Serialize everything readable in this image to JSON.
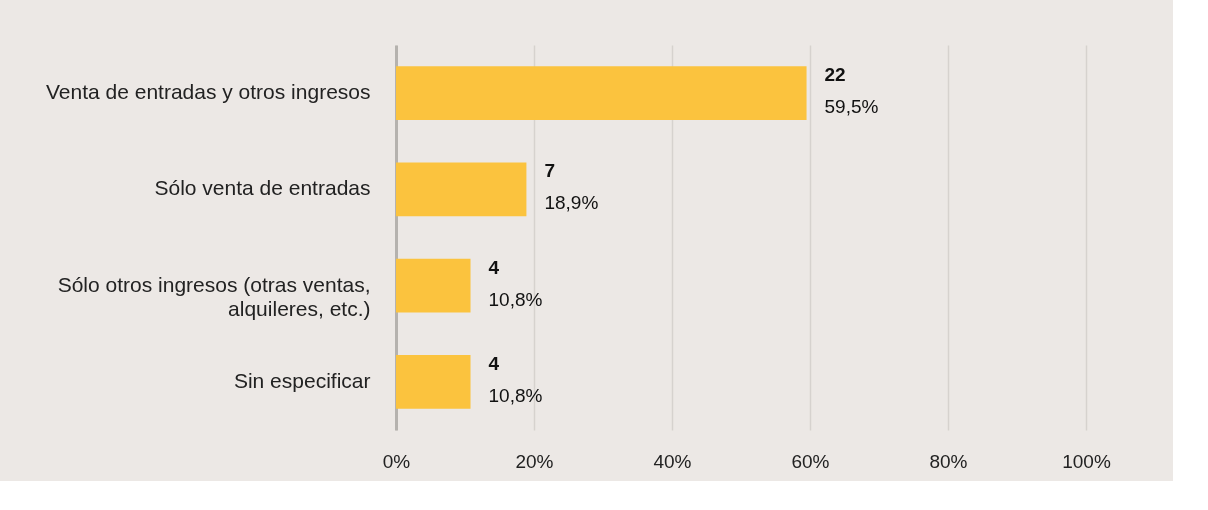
{
  "chart_data": {
    "type": "bar",
    "orientation": "horizontal",
    "categories": [
      "Venta de entradas y otros ingresos",
      "Sólo venta de entradas",
      "Sólo otros ingresos (otras ventas,\nalquileres, etc.)",
      "Sin especificar"
    ],
    "values": [
      59.5,
      18.9,
      10.8,
      10.8
    ],
    "value_labels": [
      "22\n59,5%",
      "7\n18,9%",
      "4\n10,8%",
      "4\n10,8%"
    ],
    "color": "#fbc33e",
    "xlim": [
      0,
      100
    ],
    "xticks": [
      {
        "value": 0,
        "label": "0%"
      },
      {
        "value": 20,
        "label": "20%"
      },
      {
        "value": 40,
        "label": "40%"
      },
      {
        "value": 60,
        "label": "60%"
      },
      {
        "value": 80,
        "label": "80%"
      },
      {
        "value": 100,
        "label": "100%"
      }
    ],
    "grid": "x"
  }
}
